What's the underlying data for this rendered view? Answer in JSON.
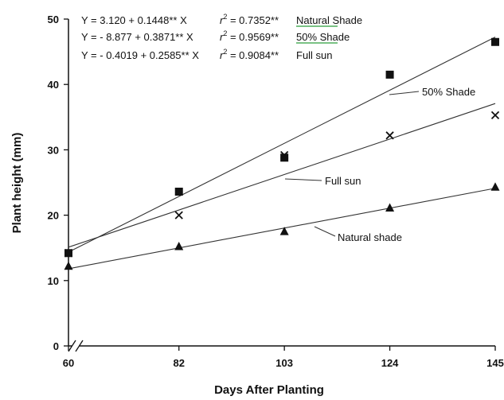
{
  "chart_data": {
    "type": "scatter",
    "xlabel": "Days After Planting",
    "ylabel": "Plant height (mm)",
    "x_ticks": [
      "60",
      "82",
      "103",
      "124",
      "145"
    ],
    "y_ticks": [
      "0",
      "10",
      "20",
      "30",
      "40",
      "50"
    ],
    "xlim": [
      60,
      145
    ],
    "ylim": [
      0,
      50
    ],
    "grid": false,
    "axis_break": "x-axis near origin",
    "equations": [
      {
        "eq": "Y = 3.120 + 0.1448** X",
        "r2_label": "r",
        "r2_sup": "2",
        "r2_value": " = 0.7352**",
        "name": "Natural Shade",
        "underline_color": "#2a9d3a"
      },
      {
        "eq": "Y = - 8.877 + 0.3871** X",
        "r2_label": "r",
        "r2_sup": "2",
        "r2_value": " = 0.9569**",
        "name": "50% Shade",
        "underline_color": "#2a9d3a"
      },
      {
        "eq": "Y = - 0.4019 + 0.2585** X",
        "r2_label": "r",
        "r2_sup": "2",
        "r2_value": " = 0.9084**",
        "name": "Full sun",
        "underline_color": ""
      }
    ],
    "series": [
      {
        "name": "50% Shade",
        "marker": "square",
        "callout": "50% Shade",
        "x": [
          60,
          82,
          103,
          124,
          145
        ],
        "y": [
          14.2,
          23.6,
          28.8,
          41.5,
          46.5
        ],
        "fit": {
          "intercept": -8.877,
          "slope": 0.3871
        }
      },
      {
        "name": "Full sun",
        "marker": "x",
        "callout": "Full sun",
        "x": [
          60,
          82,
          103,
          124,
          145
        ],
        "y": [
          14.2,
          20.0,
          29.2,
          32.2,
          35.3
        ],
        "fit": {
          "intercept": -0.4019,
          "slope": 0.2585
        }
      },
      {
        "name": "Natural shade",
        "marker": "triangle",
        "callout": "Natural shade",
        "x": [
          60,
          82,
          103,
          124,
          145
        ],
        "y": [
          12.2,
          15.2,
          17.5,
          21.1,
          24.3
        ],
        "fit": {
          "intercept": 3.12,
          "slope": 0.1448
        }
      }
    ]
  }
}
